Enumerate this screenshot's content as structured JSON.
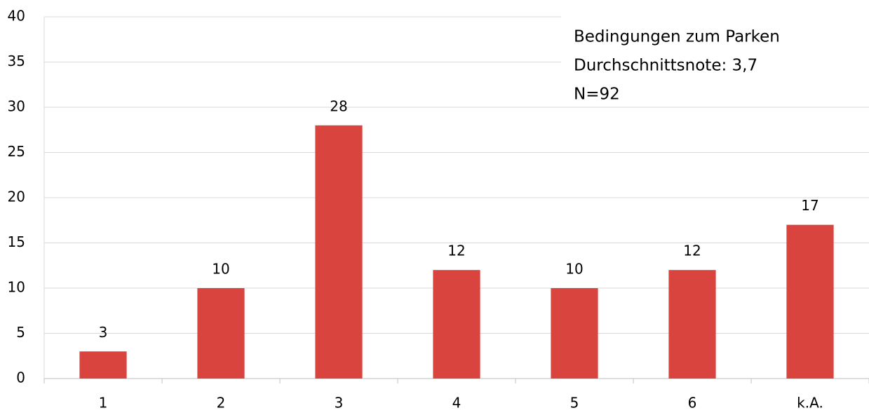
{
  "chart_data": {
    "type": "bar",
    "annotations": [
      "Bedingungen zum Parken",
      "Durchschnittsnote: 3,7",
      "N=92"
    ],
    "categories": [
      "1",
      "2",
      "3",
      "4",
      "5",
      "6",
      "k.A."
    ],
    "values": [
      3,
      10,
      28,
      12,
      10,
      12,
      17
    ],
    "color": "#d9443e",
    "ylim": [
      0,
      40
    ],
    "yticks": [
      0,
      5,
      10,
      15,
      20,
      25,
      30,
      35,
      40
    ],
    "grid": true
  }
}
